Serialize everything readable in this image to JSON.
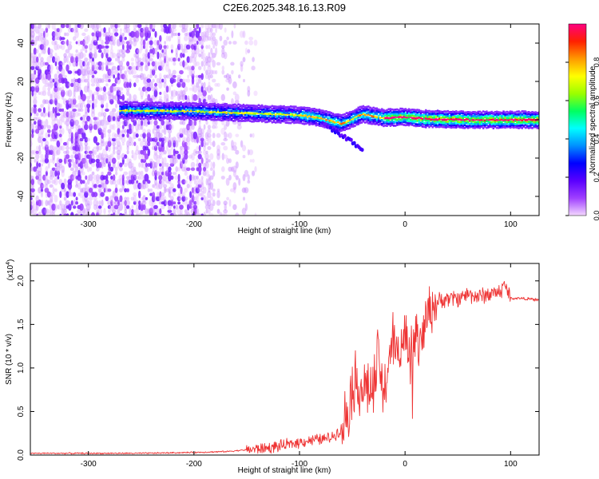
{
  "figure": {
    "title": "C2E6.2025.348.16.13.R09"
  },
  "chart_data": [
    {
      "type": "heatmap",
      "name": "spectrogram",
      "xlabel": "Height of straight line (km)",
      "ylabel": "Frequency (Hz)",
      "xlim": [
        -355,
        127
      ],
      "ylim": [
        -50,
        50
      ],
      "xticks": [
        -300,
        -200,
        -100,
        0,
        100
      ],
      "xtick_labels": [
        "-300",
        "-200",
        "-100",
        "0",
        "100"
      ],
      "yticks": [
        -40,
        -20,
        0,
        20,
        40
      ],
      "ytick_labels": [
        "-40",
        "-20",
        "0",
        "20",
        "40"
      ],
      "ridge": {
        "description_points_x": [
          -270,
          -200,
          -150,
          -100,
          -80,
          -60,
          -40,
          -20,
          0,
          20,
          60,
          100,
          127
        ],
        "frequency_hz": [
          5,
          4.5,
          3.5,
          2.5,
          1,
          -2,
          3,
          1,
          1.5,
          0.5,
          0,
          0,
          0
        ]
      },
      "colorbar": {
        "label": "Normalized spectral amplitude",
        "range": [
          0,
          1
        ],
        "ticks": [
          0.0,
          0.2,
          0.4,
          0.6,
          0.8
        ],
        "tick_labels": [
          "0.0",
          "0.2",
          "0.4",
          "0.6",
          "0.8"
        ],
        "colors": [
          "#f4d8ff",
          "#9f40ff",
          "#5a00ff",
          "#0000ff",
          "#0090ff",
          "#00ffff",
          "#00ff60",
          "#9aff00",
          "#ffff00",
          "#ff9a00",
          "#ff2000",
          "#ff0080"
        ]
      }
    },
    {
      "type": "line",
      "name": "snr",
      "xlabel": "Height of straight line (km)",
      "ylabel": "SNR (10 * v/v)",
      "multiplier_label": "(x10",
      "multiplier_exp": "4",
      "xlim": [
        -355,
        127
      ],
      "ylim": [
        0,
        2.2
      ],
      "xticks": [
        -300,
        -200,
        -100,
        0,
        100
      ],
      "xtick_labels": [
        "-300",
        "-200",
        "-100",
        "0",
        "100"
      ],
      "yticks": [
        0.0,
        0.5,
        1.0,
        1.5,
        2.0
      ],
      "ytick_labels": [
        "0.0",
        "0.5",
        "1.0",
        "1.5",
        "2.0"
      ],
      "color": "#ee3333",
      "series": [
        {
          "name": "SNR",
          "x": [
            -355,
            -300,
            -250,
            -200,
            -170,
            -150,
            -130,
            -110,
            -100,
            -90,
            -80,
            -70,
            -60,
            -55,
            -50,
            -45,
            -40,
            -35,
            -30,
            -25,
            -20,
            -15,
            -10,
            -5,
            0,
            5,
            10,
            15,
            20,
            25,
            30,
            40,
            50,
            60,
            70,
            80,
            90,
            95,
            100,
            110,
            127
          ],
          "y": [
            0.02,
            0.02,
            0.02,
            0.03,
            0.04,
            0.06,
            0.08,
            0.12,
            0.15,
            0.17,
            0.18,
            0.2,
            0.3,
            0.5,
            0.8,
            0.85,
            0.75,
            0.8,
            0.7,
            1.15,
            0.6,
            1.2,
            1.3,
            1.1,
            1.5,
            1.1,
            1.4,
            1.25,
            1.6,
            1.7,
            1.75,
            1.8,
            1.8,
            1.85,
            1.82,
            1.85,
            1.88,
            1.95,
            1.8,
            1.8,
            1.78
          ]
        }
      ]
    }
  ]
}
